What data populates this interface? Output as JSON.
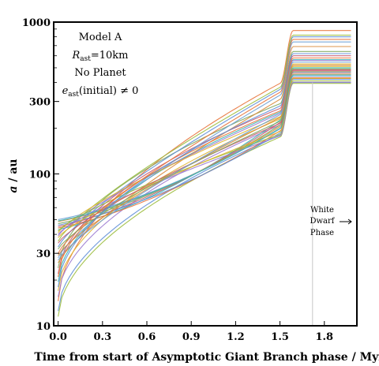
{
  "chart_data": {
    "type": "line",
    "title": "",
    "xlabel": "Time from start of Asymptotic Giant Branch phase / Myr",
    "ylabel_italic": "a",
    "ylabel_rest": " / au",
    "x_ticks": [
      "0.0",
      "0.3",
      "0.6",
      "0.9",
      "1.2",
      "1.5",
      "1.8"
    ],
    "x_tick_values": [
      0.0,
      0.3,
      0.6,
      0.9,
      1.2,
      1.5,
      1.8
    ],
    "y_ticks": [
      "10",
      "30",
      "100",
      "300",
      "1000"
    ],
    "y_tick_values": [
      10,
      30,
      100,
      300,
      1000
    ],
    "y_scale": "log",
    "xlim": [
      -0.03,
      2.02
    ],
    "ylim": [
      10,
      1000
    ],
    "white_dwarf_time": 1.72,
    "annotations": {
      "line1": "Model A",
      "line2_sym": "R",
      "line2_sub": "ast",
      "line2_rest": "=10km",
      "line3": "No Planet",
      "line4_sym": "e",
      "line4_sub": "ast",
      "line4_rest": "(initial) ≠ 0",
      "wd_line1": "White",
      "wd_line2": "Dwarf",
      "wd_line3": "Phase"
    },
    "colors": [
      "#e8743b",
      "#5e8ed8",
      "#9bbd3c",
      "#9b7ad0",
      "#e0b42c",
      "#3bb6b0",
      "#c85a6e",
      "#7fa65c",
      "#d9893a",
      "#6c9fd4"
    ],
    "series": [
      {
        "a0": 14.5,
        "a_agb_end": 395,
        "a_final": 880
      },
      {
        "a0": 12.5,
        "a_agb_end": 180,
        "a_final": 400
      },
      {
        "a0": 11.5,
        "a_agb_end": 175,
        "a_final": 395
      },
      {
        "a0": 15.5,
        "a_agb_end": 210,
        "a_final": 465
      },
      {
        "a0": 17,
        "a_agb_end": 230,
        "a_final": 510
      },
      {
        "a0": 19.5,
        "a_agb_end": 255,
        "a_final": 565
      },
      {
        "a0": 22,
        "a_agb_end": 270,
        "a_final": 600
      },
      {
        "a0": 24,
        "a_agb_end": 290,
        "a_final": 640
      },
      {
        "a0": 26,
        "a_agb_end": 310,
        "a_final": 690
      },
      {
        "a0": 28,
        "a_agb_end": 330,
        "a_final": 740
      },
      {
        "a0": 30,
        "a_agb_end": 345,
        "a_final": 770
      },
      {
        "a0": 33,
        "a_agb_end": 360,
        "a_final": 800
      },
      {
        "a0": 36,
        "a_agb_end": 372,
        "a_final": 820
      },
      {
        "a0": 39,
        "a_agb_end": 250,
        "a_final": 560
      },
      {
        "a0": 41,
        "a_agb_end": 238,
        "a_final": 530
      },
      {
        "a0": 43,
        "a_agb_end": 226,
        "a_final": 500
      },
      {
        "a0": 45,
        "a_agb_end": 218,
        "a_final": 485
      },
      {
        "a0": 47,
        "a_agb_end": 210,
        "a_final": 470
      },
      {
        "a0": 48.5,
        "a_agb_end": 205,
        "a_final": 455
      },
      {
        "a0": 50,
        "a_agb_end": 198,
        "a_final": 440
      },
      {
        "a0": 44,
        "a_agb_end": 192,
        "a_final": 430
      },
      {
        "a0": 46,
        "a_agb_end": 186,
        "a_final": 420
      },
      {
        "a0": 42,
        "a_agb_end": 182,
        "a_final": 410
      },
      {
        "a0": 40,
        "a_agb_end": 178,
        "a_final": 402
      },
      {
        "a0": 38,
        "a_agb_end": 190,
        "a_final": 425
      },
      {
        "a0": 49,
        "a_agb_end": 200,
        "a_final": 448
      },
      {
        "a0": 35,
        "a_agb_end": 215,
        "a_final": 478
      },
      {
        "a0": 32,
        "a_agb_end": 222,
        "a_final": 492
      },
      {
        "a0": 29,
        "a_agb_end": 235,
        "a_final": 520
      },
      {
        "a0": 27,
        "a_agb_end": 245,
        "a_final": 545
      },
      {
        "a0": 21,
        "a_agb_end": 260,
        "a_final": 580
      },
      {
        "a0": 18,
        "a_agb_end": 280,
        "a_final": 620
      }
    ]
  }
}
